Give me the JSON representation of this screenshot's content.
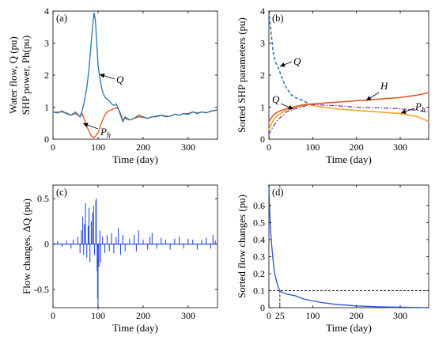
{
  "chart_data": [
    {
      "panel": "(a)",
      "type": "line",
      "xlabel": "Time (day)",
      "ylabel_lines": [
        "Water flow, Q (pu)",
        "SHP power, Ph(pu)"
      ],
      "xlim": [
        0,
        365
      ],
      "ylim": [
        0,
        4
      ],
      "xticks": [
        "0",
        "100",
        "200",
        "300"
      ],
      "yticks": [
        "0",
        "1",
        "2",
        "3",
        "4"
      ],
      "annotations": [
        "Q",
        "Ph"
      ],
      "colors": {
        "Q": "#1f77b4",
        "Ph": "#e8501c"
      },
      "series": [
        {
          "name": "Q",
          "x": [
            0,
            10,
            20,
            30,
            40,
            50,
            60,
            65,
            70,
            75,
            80,
            84,
            88,
            91,
            94,
            97,
            100,
            104,
            108,
            112,
            116,
            120,
            125,
            130,
            135,
            140,
            145,
            150,
            155,
            160,
            170,
            180,
            190,
            200,
            210,
            220,
            230,
            240,
            250,
            260,
            270,
            280,
            290,
            300,
            310,
            320,
            330,
            340,
            350,
            360,
            365
          ],
          "y": [
            0.85,
            0.82,
            0.88,
            0.8,
            0.75,
            0.85,
            0.7,
            0.9,
            1.2,
            1.6,
            2.2,
            2.9,
            3.5,
            3.95,
            3.7,
            3.0,
            2.3,
            1.9,
            1.6,
            1.4,
            1.3,
            1.25,
            1.2,
            1.1,
            1.05,
            1.1,
            0.95,
            0.75,
            0.55,
            0.7,
            0.6,
            0.65,
            0.75,
            0.7,
            0.65,
            0.7,
            0.72,
            0.75,
            0.7,
            0.72,
            0.78,
            0.75,
            0.8,
            0.78,
            0.85,
            0.8,
            0.85,
            0.82,
            0.88,
            0.9,
            0.92
          ]
        },
        {
          "name": "Ph",
          "x": [
            0,
            10,
            20,
            30,
            40,
            50,
            60,
            65,
            70,
            75,
            80,
            85,
            90,
            95,
            100,
            105,
            110,
            115,
            120,
            125,
            130,
            135,
            140,
            145,
            150,
            155,
            160,
            170,
            180,
            190,
            200,
            210,
            220,
            230,
            240,
            250,
            260,
            270,
            280,
            290,
            300,
            310,
            320,
            330,
            340,
            350,
            360,
            365
          ],
          "y": [
            0.85,
            0.85,
            0.85,
            0.82,
            0.75,
            0.8,
            0.7,
            0.8,
            0.6,
            0.4,
            0.25,
            0.1,
            0.05,
            0.1,
            0.2,
            0.4,
            0.6,
            0.75,
            0.85,
            0.9,
            0.92,
            0.95,
            0.98,
            0.95,
            0.8,
            0.6,
            0.65,
            0.6,
            0.65,
            0.7,
            0.68,
            0.65,
            0.7,
            0.7,
            0.75,
            0.72,
            0.72,
            0.78,
            0.75,
            0.8,
            0.8,
            0.85,
            0.82,
            0.85,
            0.83,
            0.87,
            0.9,
            0.92
          ]
        }
      ]
    },
    {
      "panel": "(b)",
      "type": "line",
      "xlabel": "Time (day)",
      "ylabel": "Sorted SHP parameters (pu)",
      "xlim": [
        0,
        365
      ],
      "ylim": [
        0,
        4
      ],
      "xticks": [
        "0",
        "100",
        "200",
        "300"
      ],
      "yticks": [
        "0",
        "1",
        "2",
        "3",
        "4"
      ],
      "annotations": [
        "Q",
        "H",
        "Q",
        "Ph"
      ],
      "colors": {
        "Q": "#1f77b4",
        "H": "#e8501c",
        "Yellow": "#f5a623",
        "Ph": "#7b2fa0"
      },
      "series": [
        {
          "name": "Q",
          "x": [
            0,
            3,
            6,
            10,
            15,
            20,
            25,
            30,
            40,
            50,
            60,
            70,
            80,
            90
          ],
          "y": [
            4.0,
            3.6,
            3.2,
            2.7,
            2.4,
            2.3,
            2.1,
            1.9,
            1.6,
            1.4,
            1.3,
            1.25,
            1.2,
            1.1
          ]
        },
        {
          "name": "H",
          "x": [
            0,
            10,
            20,
            40,
            60,
            80,
            100,
            150,
            200,
            250,
            300,
            340,
            365
          ],
          "y": [
            0.55,
            0.75,
            0.85,
            0.95,
            1.02,
            1.08,
            1.1,
            1.15,
            1.2,
            1.25,
            1.3,
            1.38,
            1.45
          ]
        },
        {
          "name": "",
          "x": [
            0,
            10,
            20,
            40,
            60,
            80,
            90,
            100,
            150,
            200,
            250,
            300,
            340,
            365
          ],
          "y": [
            0.3,
            0.6,
            0.75,
            0.9,
            1.0,
            1.05,
            1.1,
            1.05,
            0.95,
            0.9,
            0.85,
            0.8,
            0.7,
            0.55
          ]
        },
        {
          "name": "Ph",
          "x": [
            0,
            10,
            20,
            40,
            60,
            80,
            90,
            100,
            150,
            200,
            250,
            300,
            340,
            365
          ],
          "y": [
            0.15,
            0.4,
            0.6,
            0.85,
            0.95,
            1.02,
            1.08,
            1.08,
            1.05,
            1.0,
            0.98,
            0.95,
            0.9,
            0.85
          ]
        }
      ]
    },
    {
      "panel": "(c)",
      "type": "line",
      "xlabel": "Time (day)",
      "ylabel": "Flow changes, ΔQ (pu)",
      "xlim": [
        0,
        365
      ],
      "ylim": [
        -0.7,
        0.65
      ],
      "xticks": [
        "0",
        "100",
        "200",
        "300"
      ],
      "yticks": [
        "0.5",
        "0",
        "-0.5"
      ],
      "colors": {
        "dQ": "#2b4fd6"
      },
      "series": [
        {
          "name": "ΔQ",
          "spikes": [
            [
              10,
              0.03
            ],
            [
              20,
              -0.03
            ],
            [
              30,
              0.04
            ],
            [
              40,
              -0.05
            ],
            [
              45,
              0.05
            ],
            [
              55,
              0.08
            ],
            [
              60,
              -0.1
            ],
            [
              63,
              0.15
            ],
            [
              66,
              0.3
            ],
            [
              68,
              -0.12
            ],
            [
              70,
              0.22
            ],
            [
              72,
              0.45
            ],
            [
              75,
              -0.15
            ],
            [
              78,
              0.2
            ],
            [
              80,
              0.4
            ],
            [
              82,
              -0.2
            ],
            [
              85,
              0.25
            ],
            [
              88,
              0.35
            ],
            [
              90,
              0.42
            ],
            [
              92,
              -0.12
            ],
            [
              95,
              0.48
            ],
            [
              96,
              0.5
            ],
            [
              98,
              -0.3
            ],
            [
              99,
              -0.6
            ],
            [
              100,
              -0.72
            ],
            [
              102,
              -0.25
            ],
            [
              104,
              0.15
            ],
            [
              106,
              -0.2
            ],
            [
              110,
              0.08
            ],
            [
              115,
              -0.1
            ],
            [
              120,
              0.1
            ],
            [
              125,
              -0.08
            ],
            [
              130,
              0.12
            ],
            [
              135,
              -0.1
            ],
            [
              140,
              0.08
            ],
            [
              145,
              0.18
            ],
            [
              150,
              -0.12
            ],
            [
              155,
              0.1
            ],
            [
              160,
              -0.08
            ],
            [
              170,
              0.06
            ],
            [
              180,
              0.1
            ],
            [
              185,
              -0.08
            ],
            [
              190,
              0.15
            ],
            [
              200,
              0.05
            ],
            [
              210,
              -0.06
            ],
            [
              215,
              0.08
            ],
            [
              220,
              0.12
            ],
            [
              230,
              -0.05
            ],
            [
              240,
              0.07
            ],
            [
              250,
              0.05
            ],
            [
              260,
              -0.06
            ],
            [
              270,
              0.06
            ],
            [
              280,
              0.08
            ],
            [
              290,
              -0.05
            ],
            [
              300,
              0.06
            ],
            [
              310,
              0.05
            ],
            [
              320,
              -0.06
            ],
            [
              330,
              0.05
            ],
            [
              340,
              0.07
            ],
            [
              350,
              -0.05
            ],
            [
              355,
              0.1
            ],
            [
              360,
              0.04
            ]
          ]
        }
      ]
    },
    {
      "panel": "(d)",
      "type": "line",
      "xlabel": "Time (day)",
      "ylabel": "Sorted flow changes (pu)",
      "xlim": [
        0,
        365
      ],
      "ylim": [
        0,
        0.72
      ],
      "xticks": [
        "0",
        "25",
        "100",
        "200",
        "300"
      ],
      "yticks": [
        "0.6",
        "0.5",
        "0.4",
        "0.3",
        "0.2",
        "0.1",
        "0"
      ],
      "reference": {
        "x": 25,
        "y": 0.1
      },
      "colors": {
        "sorted": "#2b4fd6"
      },
      "series": [
        {
          "name": "",
          "x": [
            0,
            1,
            2,
            4,
            6,
            8,
            10,
            12,
            15,
            18,
            20,
            25,
            30,
            40,
            50,
            60,
            70,
            80,
            90,
            100,
            120,
            150,
            200,
            250,
            300,
            365
          ],
          "y": [
            0.72,
            0.62,
            0.55,
            0.45,
            0.38,
            0.32,
            0.27,
            0.22,
            0.18,
            0.15,
            0.13,
            0.1,
            0.09,
            0.08,
            0.075,
            0.07,
            0.06,
            0.05,
            0.045,
            0.04,
            0.03,
            0.02,
            0.01,
            0.005,
            0.003,
            0.0
          ]
        }
      ]
    }
  ]
}
